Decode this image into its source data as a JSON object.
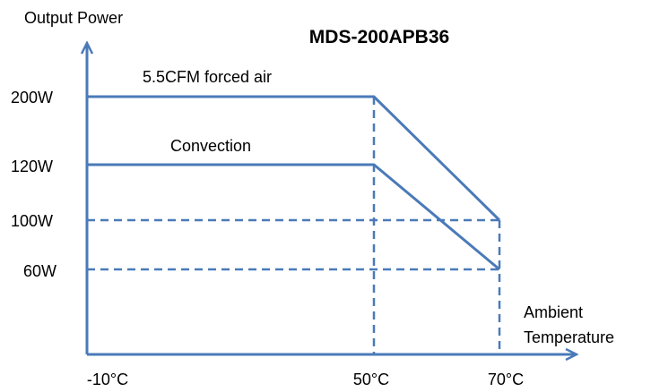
{
  "chart_data": {
    "type": "line",
    "title": "MDS-200APB36",
    "ylabel": "Output Power",
    "xlabel": [
      "Ambient",
      "Temperature"
    ],
    "x_ticks": [
      {
        "value": -10,
        "label": "-10°C"
      },
      {
        "value": 50,
        "label": "50°C"
      },
      {
        "value": 70,
        "label": "70°C"
      }
    ],
    "y_ticks": [
      {
        "value": 200,
        "label": "200W"
      },
      {
        "value": 120,
        "label": "120W"
      },
      {
        "value": 100,
        "label": "100W"
      },
      {
        "value": 60,
        "label": "60W"
      }
    ],
    "xlim": [
      -10,
      70
    ],
    "ylim": [
      0,
      200
    ],
    "grid": false,
    "series": [
      {
        "name": "5.5CFM forced air",
        "x": [
          -10,
          50,
          70
        ],
        "y": [
          200,
          200,
          100
        ]
      },
      {
        "name": "Convection",
        "x": [
          -10,
          50,
          70
        ],
        "y": [
          120,
          120,
          60
        ]
      }
    ],
    "color": "#4a7ab8"
  }
}
